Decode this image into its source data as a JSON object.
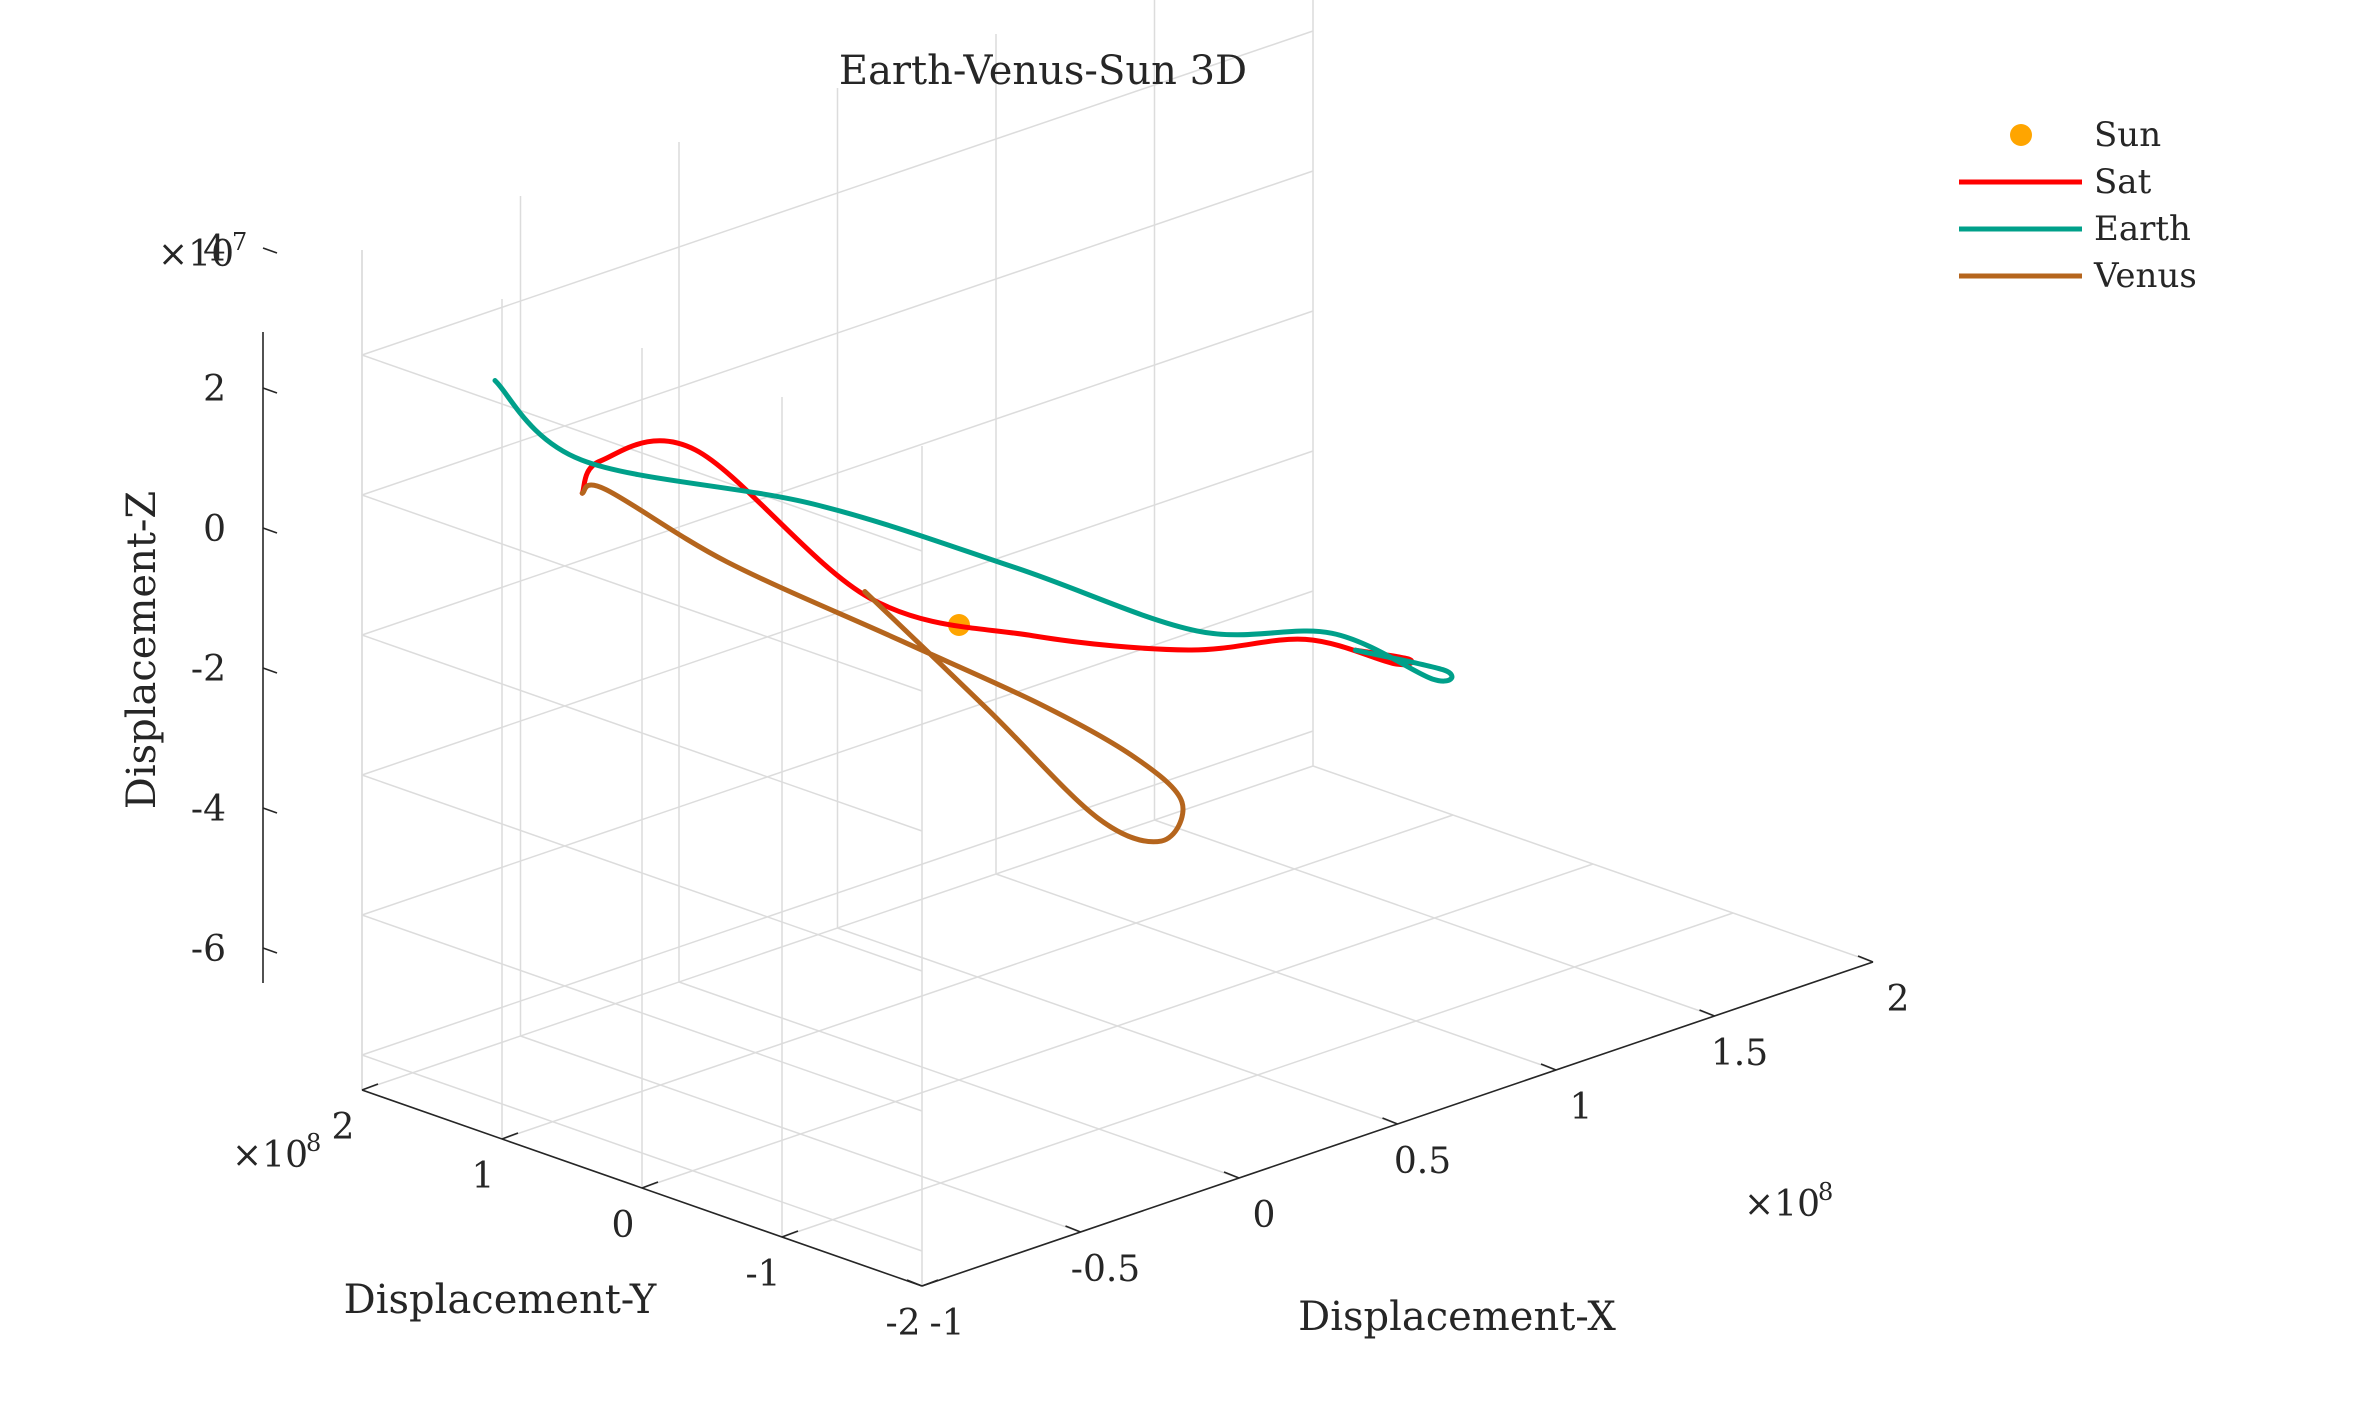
{
  "chart_data": {
    "type": "line",
    "title": "Earth-Venus-Sun 3D",
    "xlabel": "Displacement-X",
    "ylabel": "Displacement-Y",
    "zlabel": "Displacement-Z",
    "x_ticks": [
      "-1",
      "-0.5",
      "0",
      "0.5",
      "1",
      "1.5",
      "2"
    ],
    "y_ticks": [
      "2",
      "1",
      "0",
      "-1",
      "-2"
    ],
    "z_ticks": [
      "4",
      "2",
      "0",
      "-2",
      "-4",
      "-6"
    ],
    "x_exponent": "×10^8",
    "y_exponent": "×10^8",
    "z_exponent": "×10^7",
    "xlim": [
      -1,
      2
    ],
    "ylim": [
      -2,
      2
    ],
    "zlim": [
      -6.5,
      5.5
    ],
    "grid": true,
    "legend_position": "top-right",
    "series": [
      {
        "name": "Sun",
        "marker": "dot",
        "color": "#ffa500",
        "points": [
          [
            0,
            0,
            0
          ]
        ]
      },
      {
        "name": "Sat",
        "color": "#ff0000",
        "points": [
          [
            0.8,
            -1.02,
            -0.88
          ],
          [
            1.11,
            -0.7,
            -1.71
          ],
          [
            1.28,
            -0.21,
            -2.38
          ],
          [
            1.23,
            0.31,
            -2.32
          ],
          [
            1.02,
            0.67,
            -2.4
          ],
          [
            0.67,
            0.99,
            -1.88
          ],
          [
            0.23,
            1.16,
            -0.78
          ],
          [
            -0.28,
            1.25,
            2.06
          ],
          [
            -0.68,
            1.02,
            2.68
          ],
          [
            -0.95,
            0.54,
            2.97
          ]
        ]
      },
      {
        "name": "Earth",
        "color": "#00a08a",
        "points": [
          [
            0.8,
            -1.02,
            -0.88
          ],
          [
            1.26,
            -0.62,
            -2.16
          ],
          [
            1.45,
            -0.1,
            -2.94
          ],
          [
            1.38,
            0.46,
            -2.57
          ],
          [
            1.13,
            0.86,
            -2.43
          ],
          [
            0.71,
            1.2,
            -1.12
          ],
          [
            0.16,
            1.4,
            0.5
          ],
          [
            -0.55,
            1.45,
            2.19
          ],
          [
            -1.0,
            1.05,
            4.3
          ]
        ]
      },
      {
        "name": "Venus",
        "color": "#b5651d",
        "points": [
          [
            -0.95,
            0.54,
            2.97
          ],
          [
            -0.7,
            0.94,
            2.36
          ],
          [
            -0.22,
            1.16,
            0.43
          ],
          [
            0.3,
            1.11,
            -1.45
          ],
          [
            0.64,
            0.86,
            -2.73
          ],
          [
            0.75,
            0.44,
            -3.36
          ],
          [
            0.73,
            0.06,
            -3.7
          ],
          [
            0.44,
            -0.45,
            -3.45
          ],
          [
            0.07,
            -0.83,
            -2.28
          ],
          [
            -0.38,
            -1.07,
            0.12
          ],
          [
            -0.73,
            -0.98,
            2.29
          ]
        ]
      }
    ]
  }
}
